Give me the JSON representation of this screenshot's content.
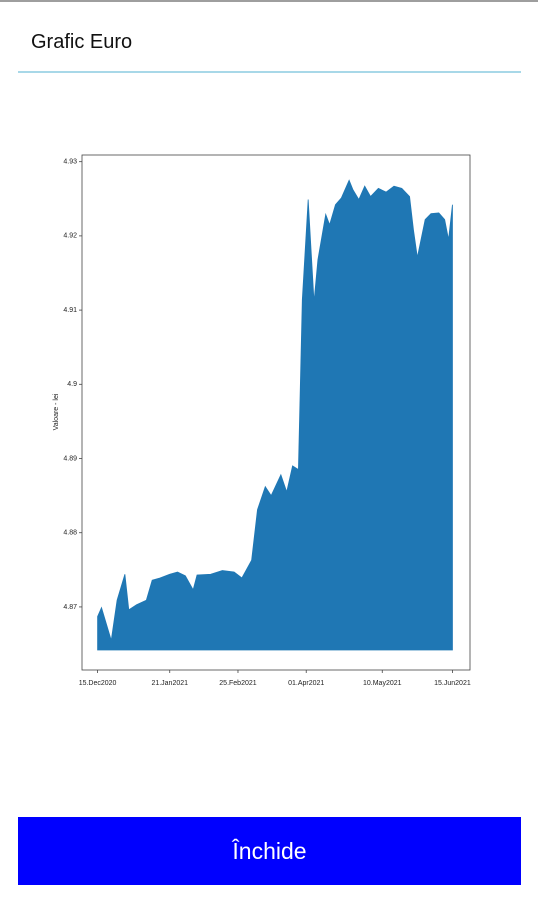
{
  "header": {
    "title": "Grafic Euro"
  },
  "chart_data": {
    "type": "area",
    "ylabel": "Valoare - lei",
    "x": [
      "2020-12-15",
      "2020-12-17",
      "2020-12-22",
      "2020-12-25",
      "2020-12-29",
      "2020-12-31",
      "2021-01-04",
      "2021-01-09",
      "2021-01-12",
      "2021-01-16",
      "2021-01-21",
      "2021-01-25",
      "2021-01-29",
      "2021-02-02",
      "2021-02-04",
      "2021-02-11",
      "2021-02-17",
      "2021-02-23",
      "2021-02-27",
      "2021-03-04",
      "2021-03-07",
      "2021-03-11",
      "2021-03-14",
      "2021-03-19",
      "2021-03-22",
      "2021-03-25",
      "2021-03-28",
      "2021-03-30",
      "2021-04-02",
      "2021-04-05",
      "2021-04-07",
      "2021-04-11",
      "2021-04-13",
      "2021-04-16",
      "2021-04-19",
      "2021-04-23",
      "2021-04-25",
      "2021-04-28",
      "2021-05-01",
      "2021-05-04",
      "2021-05-08",
      "2021-05-12",
      "2021-05-16",
      "2021-05-20",
      "2021-05-24",
      "2021-05-26",
      "2021-05-28",
      "2021-06-01",
      "2021-06-04",
      "2021-06-08",
      "2021-06-11",
      "2021-06-13",
      "2021-06-15"
    ],
    "values": [
      4.8687,
      4.8699,
      4.8655,
      4.8709,
      4.8744,
      4.8696,
      4.8703,
      4.8709,
      4.8736,
      4.8739,
      4.8744,
      4.8747,
      4.8742,
      4.8723,
      4.8743,
      4.8744,
      4.8749,
      4.8747,
      4.8739,
      4.8763,
      4.8831,
      4.8862,
      4.885,
      4.8878,
      4.8855,
      4.889,
      4.8885,
      4.9114,
      4.9249,
      4.9111,
      4.9168,
      4.9229,
      4.9215,
      4.9242,
      4.9251,
      4.9275,
      4.9262,
      4.9249,
      4.9267,
      4.9253,
      4.9264,
      4.9259,
      4.9267,
      4.9264,
      4.9253,
      4.9208,
      4.9171,
      4.9222,
      4.923,
      4.9231,
      4.9222,
      4.9195,
      4.9242
    ],
    "color": "#1f77b4",
    "fill_to": 4.8642,
    "xlim": [
      "2020-12-07",
      "2021-06-24"
    ],
    "xticks": [
      {
        "value": "2020-12-15",
        "label": "15.Dec2020"
      },
      {
        "value": "2021-01-21",
        "label": "21.Jan2021"
      },
      {
        "value": "2021-02-25",
        "label": "25.Feb2021"
      },
      {
        "value": "2021-04-01",
        "label": "01.Apr2021"
      },
      {
        "value": "2021-05-10",
        "label": "10.May2021"
      },
      {
        "value": "2021-06-15",
        "label": "15.Jun2021"
      }
    ],
    "ylim": [
      4.8615,
      4.9309
    ],
    "yticks": [
      4.87,
      4.88,
      4.89,
      4.9,
      {
        "value": 4.91,
        "label": "4.91"
      },
      4.92,
      4.93
    ]
  },
  "button": {
    "label": "Închide"
  }
}
